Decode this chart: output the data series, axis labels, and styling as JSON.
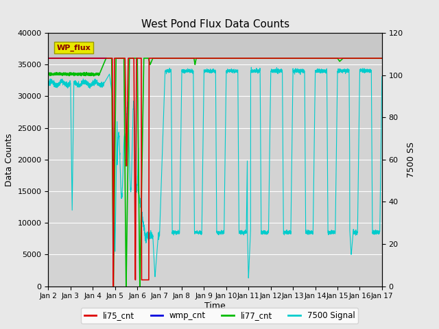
{
  "title": "West Pond Flux Data Counts",
  "xlabel": "Time",
  "ylabel_left": "Data Counts",
  "ylabel_right": "7500 SS",
  "ylim_left": [
    0,
    40000
  ],
  "ylim_right": [
    0,
    120
  ],
  "bg_color": "#e8e8e8",
  "plot_bg_color": "#d3d3d3",
  "legend_items": [
    "li75_cnt",
    "wmp_cnt",
    "li77_cnt",
    "7500 Signal"
  ],
  "legend_colors": [
    "#ff0000",
    "#0000ff",
    "#00cc00",
    "#00cccc"
  ],
  "wp_flux_box_color": "#e8e800",
  "wp_flux_text_color": "#880000",
  "date_labels": [
    "Jan 2",
    "Jan 3",
    "Jan 4",
    "Jan 5",
    "Jan 6",
    "Jan 7",
    "Jan 8",
    "Jan 9",
    "Jan 10",
    "Jan 11",
    "Jan 12",
    "Jan 13",
    "Jan 14",
    "Jan 15",
    "Jan 16",
    "Jan 17"
  ],
  "scale_factor": 333.33
}
